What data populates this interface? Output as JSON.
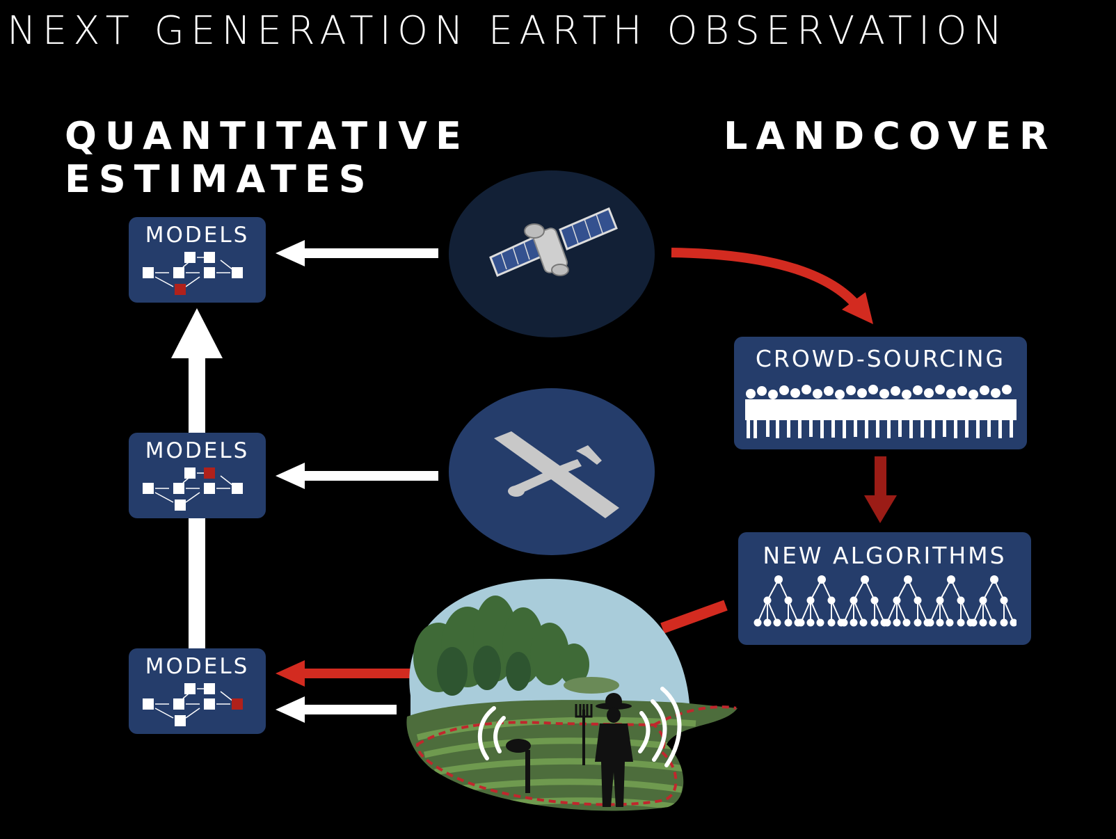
{
  "title": "NEXT GENERATION EARTH OBSERVATION",
  "headings": {
    "left_line1": "QUANTITATIVE",
    "left_line2": "ESTIMATES",
    "right": "LANDCOVER"
  },
  "models_boxes": [
    {
      "label": "MODELS",
      "highlight": "bottom"
    },
    {
      "label": "MODELS",
      "highlight": "top"
    },
    {
      "label": "MODELS",
      "highlight": "output"
    }
  ],
  "crowd_box": {
    "label": "CROWD-SOURCING"
  },
  "algorithms_box": {
    "label": "NEW ALGORITHMS"
  },
  "icons": {
    "satellite": "satellite-icon",
    "drone": "drone-icon",
    "field": "field-sensor-farmer-icon",
    "crowd": "crowd-silhouette-icon",
    "trees": "decision-tree-icon",
    "network": "model-network-icon"
  },
  "colors": {
    "background": "#000000",
    "box_fill": "#253d6b",
    "circle_dark": "#122036",
    "circle_blue": "#253d6b",
    "accent_red": "#d32b20",
    "dark_red": "#9b1c16",
    "arrow_white": "#ffffff"
  }
}
